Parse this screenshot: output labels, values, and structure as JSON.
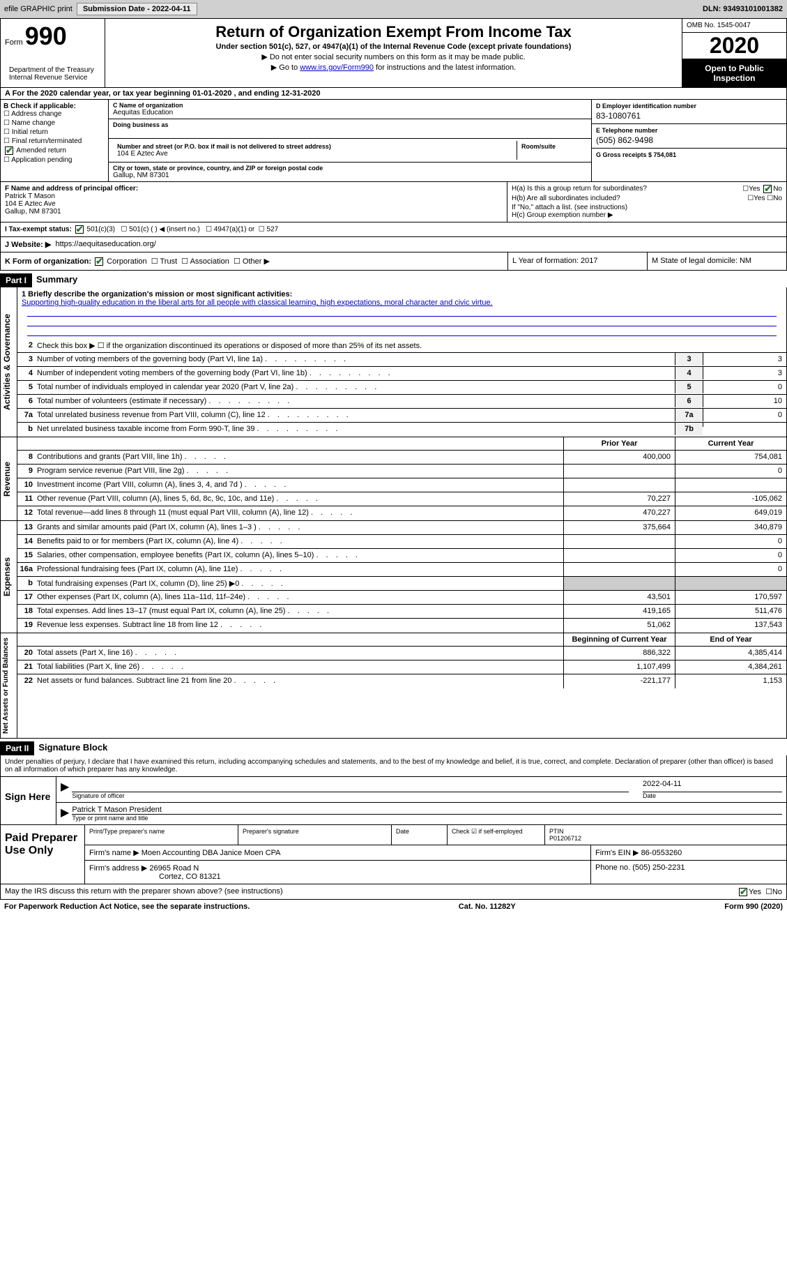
{
  "header_bar": {
    "efile": "efile GRAPHIC print",
    "submission_label": "Submission Date - 2022-04-11",
    "dln": "DLN: 93493101001382"
  },
  "form_header": {
    "form_word": "Form",
    "form_number": "990",
    "dept": "Department of the Treasury\nInternal Revenue Service",
    "title": "Return of Organization Exempt From Income Tax",
    "subtitle": "Under section 501(c), 527, or 4947(a)(1) of the Internal Revenue Code (except private foundations)",
    "note1": "▶ Do not enter social security numbers on this form as it may be made public.",
    "note2_pre": "▶ Go to ",
    "note2_link": "www.irs.gov/Form990",
    "note2_post": " for instructions and the latest information.",
    "omb": "OMB No. 1545-0047",
    "year": "2020",
    "inspection": "Open to Public Inspection"
  },
  "section_a": "A For the 2020 calendar year, or tax year beginning 01-01-2020   , and ending 12-31-2020",
  "section_b": {
    "label": "B Check if applicable:",
    "items": [
      "Address change",
      "Name change",
      "Initial return",
      "Final return/terminated",
      "Amended return",
      "Application pending"
    ],
    "checked_idx": 4
  },
  "section_c": {
    "name_label": "C Name of organization",
    "name": "Aequitas Education",
    "dba_label": "Doing business as",
    "street_label": "Number and street (or P.O. box if mail is not delivered to street address)",
    "room_label": "Room/suite",
    "street": "104 E Aztec Ave",
    "city_label": "City or town, state or province, country, and ZIP or foreign postal code",
    "city": "Gallup, NM  87301"
  },
  "section_d": {
    "ein_label": "D Employer identification number",
    "ein": "83-1080761",
    "phone_label": "E Telephone number",
    "phone": "(505) 862-9498",
    "gross_label": "G Gross receipts $ 754,081"
  },
  "section_f": {
    "label": "F  Name and address of principal officer:",
    "name": "Patrick T Mason",
    "addr1": "104 E Aztec Ave",
    "addr2": "Gallup, NM  87301"
  },
  "section_h": {
    "ha_label": "H(a)  Is this a group return for subordinates?",
    "hb_label": "H(b)  Are all subordinates included?",
    "hb_note": "If \"No,\" attach a list. (see instructions)",
    "hc_label": "H(c)  Group exemption number ▶"
  },
  "section_i": {
    "label": "I  Tax-exempt status:",
    "opts": [
      "501(c)(3)",
      "501(c) (  ) ◀ (insert no.)",
      "4947(a)(1) or",
      "527"
    ]
  },
  "section_j": {
    "label": "J  Website: ▶",
    "value": "https://aequitaseducation.org/"
  },
  "section_k": {
    "label": "K Form of organization:",
    "opts": [
      "Corporation",
      "Trust",
      "Association",
      "Other ▶"
    ]
  },
  "section_l": {
    "label": "L Year of formation: 2017"
  },
  "section_m": {
    "label": "M State of legal domicile: NM"
  },
  "part1": {
    "header": "Part I",
    "title": "Summary",
    "sidebar1": "Activities & Governance",
    "sidebar2": "Revenue",
    "sidebar3": "Expenses",
    "sidebar4": "Net Assets or Fund Balances",
    "line1_label": "1  Briefly describe the organization's mission or most significant activities:",
    "mission": "Supporting high-quality education in the liberal arts for all people with classical learning, high expectations, moral character and civic virtue.",
    "line2": "Check this box ▶ ☐  if the organization discontinued its operations or disposed of more than 25% of its net assets.",
    "lines_gov": [
      {
        "num": "3",
        "text": "Number of voting members of the governing body (Part VI, line 1a)",
        "box": "3",
        "val": "3"
      },
      {
        "num": "4",
        "text": "Number of independent voting members of the governing body (Part VI, line 1b)",
        "box": "4",
        "val": "3"
      },
      {
        "num": "5",
        "text": "Total number of individuals employed in calendar year 2020 (Part V, line 2a)",
        "box": "5",
        "val": "0"
      },
      {
        "num": "6",
        "text": "Total number of volunteers (estimate if necessary)",
        "box": "6",
        "val": "10"
      },
      {
        "num": "7a",
        "text": "Total unrelated business revenue from Part VIII, column (C), line 12",
        "box": "7a",
        "val": "0"
      },
      {
        "num": "b",
        "text": "Net unrelated business taxable income from Form 990-T, line 39",
        "box": "7b",
        "val": ""
      }
    ],
    "col_headers": {
      "prior": "Prior Year",
      "current": "Current Year"
    },
    "lines_rev": [
      {
        "num": "8",
        "text": "Contributions and grants (Part VIII, line 1h)",
        "prior": "400,000",
        "current": "754,081"
      },
      {
        "num": "9",
        "text": "Program service revenue (Part VIII, line 2g)",
        "prior": "",
        "current": "0"
      },
      {
        "num": "10",
        "text": "Investment income (Part VIII, column (A), lines 3, 4, and 7d )",
        "prior": "",
        "current": ""
      },
      {
        "num": "11",
        "text": "Other revenue (Part VIII, column (A), lines 5, 6d, 8c, 9c, 10c, and 11e)",
        "prior": "70,227",
        "current": "-105,062"
      },
      {
        "num": "12",
        "text": "Total revenue—add lines 8 through 11 (must equal Part VIII, column (A), line 12)",
        "prior": "470,227",
        "current": "649,019"
      }
    ],
    "lines_exp": [
      {
        "num": "13",
        "text": "Grants and similar amounts paid (Part IX, column (A), lines 1–3 )",
        "prior": "375,664",
        "current": "340,879"
      },
      {
        "num": "14",
        "text": "Benefits paid to or for members (Part IX, column (A), line 4)",
        "prior": "",
        "current": "0"
      },
      {
        "num": "15",
        "text": "Salaries, other compensation, employee benefits (Part IX, column (A), lines 5–10)",
        "prior": "",
        "current": "0"
      },
      {
        "num": "16a",
        "text": "Professional fundraising fees (Part IX, column (A), line 11e)",
        "prior": "",
        "current": "0"
      },
      {
        "num": "b",
        "text": "Total fundraising expenses (Part IX, column (D), line 25) ▶0",
        "prior": "—",
        "current": "—"
      },
      {
        "num": "17",
        "text": "Other expenses (Part IX, column (A), lines 11a–11d, 11f–24e)",
        "prior": "43,501",
        "current": "170,597"
      },
      {
        "num": "18",
        "text": "Total expenses. Add lines 13–17 (must equal Part IX, column (A), line 25)",
        "prior": "419,165",
        "current": "511,476"
      },
      {
        "num": "19",
        "text": "Revenue less expenses. Subtract line 18 from line 12",
        "prior": "51,062",
        "current": "137,543"
      }
    ],
    "col_headers2": {
      "prior": "Beginning of Current Year",
      "current": "End of Year"
    },
    "lines_net": [
      {
        "num": "20",
        "text": "Total assets (Part X, line 16)",
        "prior": "886,322",
        "current": "4,385,414"
      },
      {
        "num": "21",
        "text": "Total liabilities (Part X, line 26)",
        "prior": "1,107,499",
        "current": "4,384,261"
      },
      {
        "num": "22",
        "text": "Net assets or fund balances. Subtract line 21 from line 20",
        "prior": "-221,177",
        "current": "1,153"
      }
    ]
  },
  "part2": {
    "header": "Part II",
    "title": "Signature Block",
    "declaration": "Under penalties of perjury, I declare that I have examined this return, including accompanying schedules and statements, and to the best of my knowledge and belief, it is true, correct, and complete. Declaration of preparer (other than officer) is based on all information of which preparer has any knowledge.",
    "sign_here": "Sign Here",
    "sig_officer": "Signature of officer",
    "sig_date": "2022-04-11",
    "sig_date_label": "Date",
    "name_title": "Patrick T Mason President",
    "name_title_label": "Type or print name and title"
  },
  "paid_prep": {
    "label": "Paid Preparer Use Only",
    "print_name_label": "Print/Type preparer's name",
    "prep_sig_label": "Preparer's signature",
    "date_label": "Date",
    "check_label": "Check ☑ if self-employed",
    "ptin_label": "PTIN",
    "ptin": "P01206712",
    "firm_name_label": "Firm's name    ▶",
    "firm_name": "Moen Accounting DBA Janice Moen CPA",
    "firm_ein_label": "Firm's EIN ▶",
    "firm_ein": "86-0553260",
    "firm_addr_label": "Firm's address ▶",
    "firm_addr1": "26965 Road N",
    "firm_addr2": "Cortez, CO  81321",
    "phone_label": "Phone no.",
    "phone": "(505) 250-2231"
  },
  "footer": {
    "discuss": "May the IRS discuss this return with the preparer shown above? (see instructions)",
    "paperwork": "For Paperwork Reduction Act Notice, see the separate instructions.",
    "cat": "Cat. No. 11282Y",
    "form": "Form 990 (2020)"
  }
}
